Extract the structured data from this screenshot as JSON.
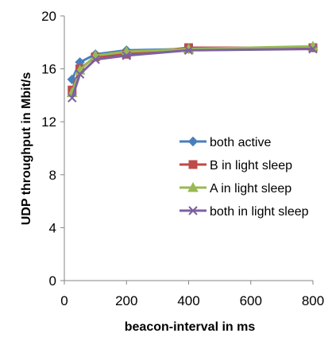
{
  "chart_data": {
    "type": "line",
    "title": "",
    "xlabel": "beacon-interval in ms",
    "ylabel": "UDP throughput in Mbit/s",
    "xlim": [
      0,
      800
    ],
    "ylim": [
      0,
      20
    ],
    "x_ticks": [
      0,
      200,
      400,
      600,
      800
    ],
    "y_ticks": [
      0,
      4,
      8,
      12,
      16,
      20
    ],
    "grid": false,
    "legend_position": "center-right",
    "x": [
      25,
      50,
      100,
      200,
      400,
      800
    ],
    "series": [
      {
        "name": "both active",
        "values": [
          15.2,
          16.5,
          17.1,
          17.4,
          17.5,
          17.6
        ],
        "color": "#4a7ebb",
        "marker": "diamond"
      },
      {
        "name": "B in light sleep",
        "values": [
          14.4,
          16.0,
          16.9,
          17.1,
          17.6,
          17.6
        ],
        "color": "#be4b48",
        "marker": "square"
      },
      {
        "name": "A in light sleep",
        "values": [
          14.2,
          15.9,
          17.0,
          17.3,
          17.5,
          17.7
        ],
        "color": "#98b954",
        "marker": "triangle"
      },
      {
        "name": "both in light sleep",
        "values": [
          13.8,
          15.6,
          16.7,
          17.0,
          17.4,
          17.5
        ],
        "color": "#7d60a0",
        "marker": "x"
      }
    ]
  }
}
